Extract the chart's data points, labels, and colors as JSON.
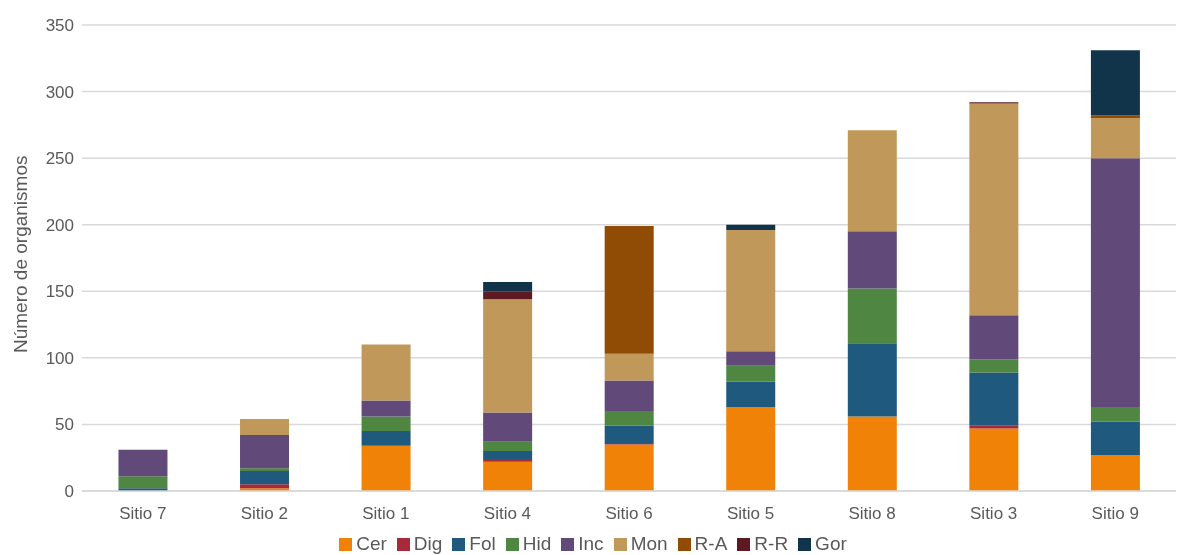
{
  "chart_data": {
    "type": "bar",
    "stacked": true,
    "ylabel": "Número de organismos",
    "categories": [
      "Sitio 7",
      "Sitio 2",
      "Sitio 1",
      "Sitio 4",
      "Sitio 6",
      "Sitio 5",
      "Sitio 8",
      "Sitio 3",
      "Sitio 9"
    ],
    "series": [
      {
        "name": "Cer",
        "color": "#f08208",
        "values": [
          0,
          2,
          34,
          22,
          35,
          63,
          56,
          47,
          27
        ]
      },
      {
        "name": "Dig",
        "color": "#a52a3a",
        "values": [
          0,
          3,
          0,
          2,
          1,
          0,
          0,
          2,
          0
        ]
      },
      {
        "name": "Fol",
        "color": "#1f5a7e",
        "values": [
          2,
          10,
          11,
          6,
          13,
          19,
          55,
          40,
          25
        ]
      },
      {
        "name": "Hid",
        "color": "#4f8642",
        "values": [
          9,
          2,
          11,
          7,
          11,
          12,
          41,
          10,
          11
        ]
      },
      {
        "name": "Inc",
        "color": "#614a7a",
        "values": [
          20,
          25,
          12,
          22,
          23,
          11,
          43,
          33,
          187
        ]
      },
      {
        "name": "Mon",
        "color": "#c0985a",
        "values": [
          0,
          12,
          42,
          85,
          20,
          91,
          76,
          159,
          30
        ]
      },
      {
        "name": "R-A",
        "color": "#904b05",
        "values": [
          0,
          0,
          0,
          0,
          96,
          0,
          0,
          0,
          2
        ]
      },
      {
        "name": "R-R",
        "color": "#5e1a22",
        "values": [
          0,
          0,
          0,
          6,
          0,
          0,
          0,
          1,
          0
        ]
      },
      {
        "name": "Gor",
        "color": "#12344a",
        "values": [
          0,
          0,
          0,
          7,
          0,
          4,
          0,
          0,
          49
        ]
      }
    ],
    "ylim": [
      0,
      350
    ],
    "yticks": [
      0,
      50,
      100,
      150,
      200,
      250,
      300,
      350
    ],
    "grid": "y",
    "legend": "bottom"
  }
}
